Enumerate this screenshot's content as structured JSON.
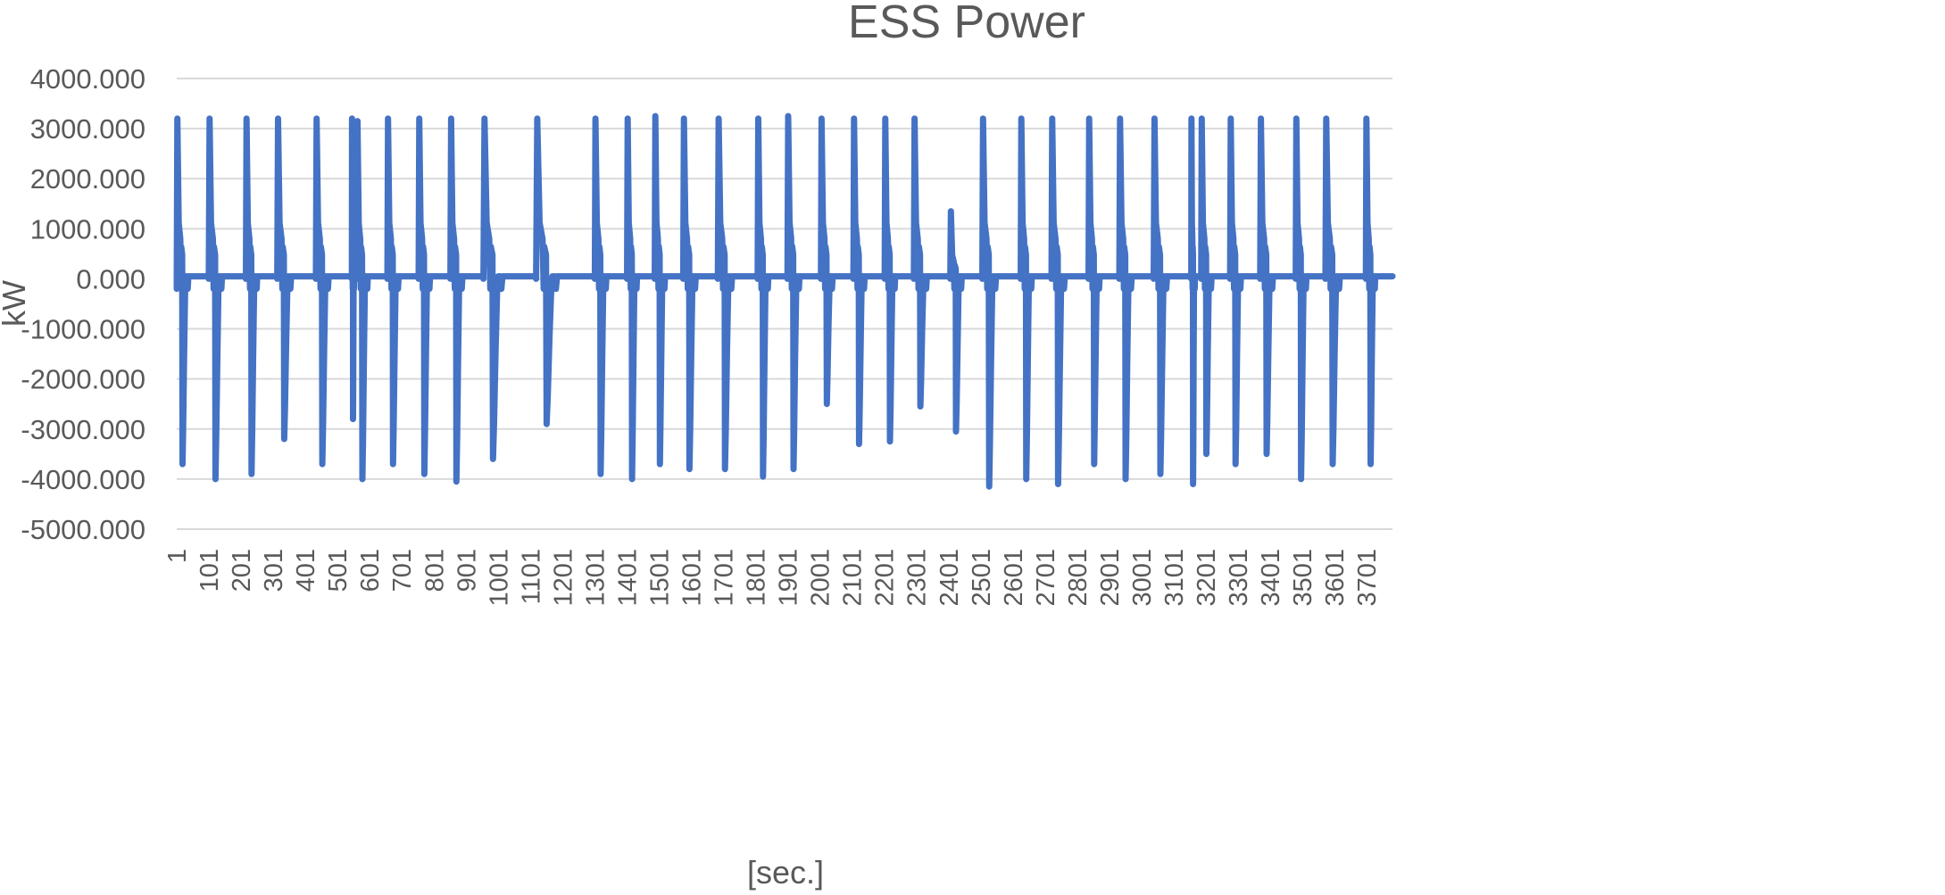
{
  "chart_data": {
    "type": "line",
    "title": "ESS Power",
    "xlabel": "[sec.]",
    "ylabel": "kW",
    "ylim": [
      -5000,
      4000
    ],
    "xlim": [
      1,
      3781
    ],
    "grid": true,
    "legend": "none",
    "y_ticks": [
      "4000.000",
      "3000.000",
      "2000.000",
      "1000.000",
      "0.000",
      "-1000.000",
      "-2000.000",
      "-3000.000",
      "-4000.000",
      "-5000.000"
    ],
    "y_tick_values": [
      4000,
      3000,
      2000,
      1000,
      0,
      -1000,
      -2000,
      -3000,
      -4000,
      -5000
    ],
    "x_ticks": [
      "1",
      "101",
      "201",
      "301",
      "401",
      "501",
      "601",
      "701",
      "801",
      "901",
      "1001",
      "1101",
      "1201",
      "1301",
      "1401",
      "1501",
      "1601",
      "1701",
      "1801",
      "1901",
      "2001",
      "2101",
      "2201",
      "2301",
      "2401",
      "2501",
      "2601",
      "2701",
      "2801",
      "2901",
      "3001",
      "3101",
      "3201",
      "3301",
      "3401",
      "3501",
      "3601",
      "3701"
    ],
    "colors": {
      "series": "#4472C4",
      "grid": "#D9D9D9",
      "text": "#595959"
    },
    "series": [
      {
        "color": "#4472C4",
        "peaks": [
          {
            "x": 3,
            "high": 3200,
            "low": -3700
          },
          {
            "x": 103,
            "high": 3200,
            "low": -4000
          },
          {
            "x": 218,
            "high": 3200,
            "low": -3900
          },
          {
            "x": 316,
            "high": 3200,
            "low": -3200
          },
          {
            "x": 436,
            "high": 3200,
            "low": -3700
          },
          {
            "x": 546,
            "high": 3200,
            "low": -2800
          },
          {
            "x": 563,
            "high": 3150,
            "low": -4000
          },
          {
            "x": 658,
            "high": 3200,
            "low": -3700
          },
          {
            "x": 755,
            "high": 3200,
            "low": -3900
          },
          {
            "x": 854,
            "high": 3200,
            "low": -4050
          },
          {
            "x": 958,
            "high": 3200,
            "low": -3600
          },
          {
            "x": 1122,
            "high": 3200,
            "low": -2900
          },
          {
            "x": 1303,
            "high": 3200,
            "low": -3900
          },
          {
            "x": 1403,
            "high": 3200,
            "low": -4000
          },
          {
            "x": 1489,
            "high": 3250,
            "low": -3700
          },
          {
            "x": 1578,
            "high": 3200,
            "low": -3800
          },
          {
            "x": 1686,
            "high": 3200,
            "low": -3800
          },
          {
            "x": 1809,
            "high": 3200,
            "low": -3950
          },
          {
            "x": 1902,
            "high": 3250,
            "low": -3800
          },
          {
            "x": 2006,
            "high": 3200,
            "low": -2500
          },
          {
            "x": 2107,
            "high": 3200,
            "low": -3300
          },
          {
            "x": 2204,
            "high": 3200,
            "low": -3250
          },
          {
            "x": 2295,
            "high": 3200,
            "low": -2550
          },
          {
            "x": 2408,
            "high": 1350,
            "low": -3050
          },
          {
            "x": 2508,
            "high": 3200,
            "low": -4150
          },
          {
            "x": 2627,
            "high": 3200,
            "low": -4000
          },
          {
            "x": 2723,
            "high": 3200,
            "low": -4100
          },
          {
            "x": 2838,
            "high": 3200,
            "low": -3700
          },
          {
            "x": 2934,
            "high": 3200,
            "low": -4000
          },
          {
            "x": 3041,
            "high": 3200,
            "low": -3900
          },
          {
            "x": 3156,
            "high": 3200,
            "low": -4100
          },
          {
            "x": 3188,
            "high": 3200,
            "low": -3500
          },
          {
            "x": 3278,
            "high": 3200,
            "low": -3700
          },
          {
            "x": 3372,
            "high": 3200,
            "low": -3500
          },
          {
            "x": 3482,
            "high": 3200,
            "low": -4000
          },
          {
            "x": 3575,
            "high": 3200,
            "low": -3700
          },
          {
            "x": 3700,
            "high": 3200,
            "low": -3700
          }
        ]
      }
    ]
  }
}
